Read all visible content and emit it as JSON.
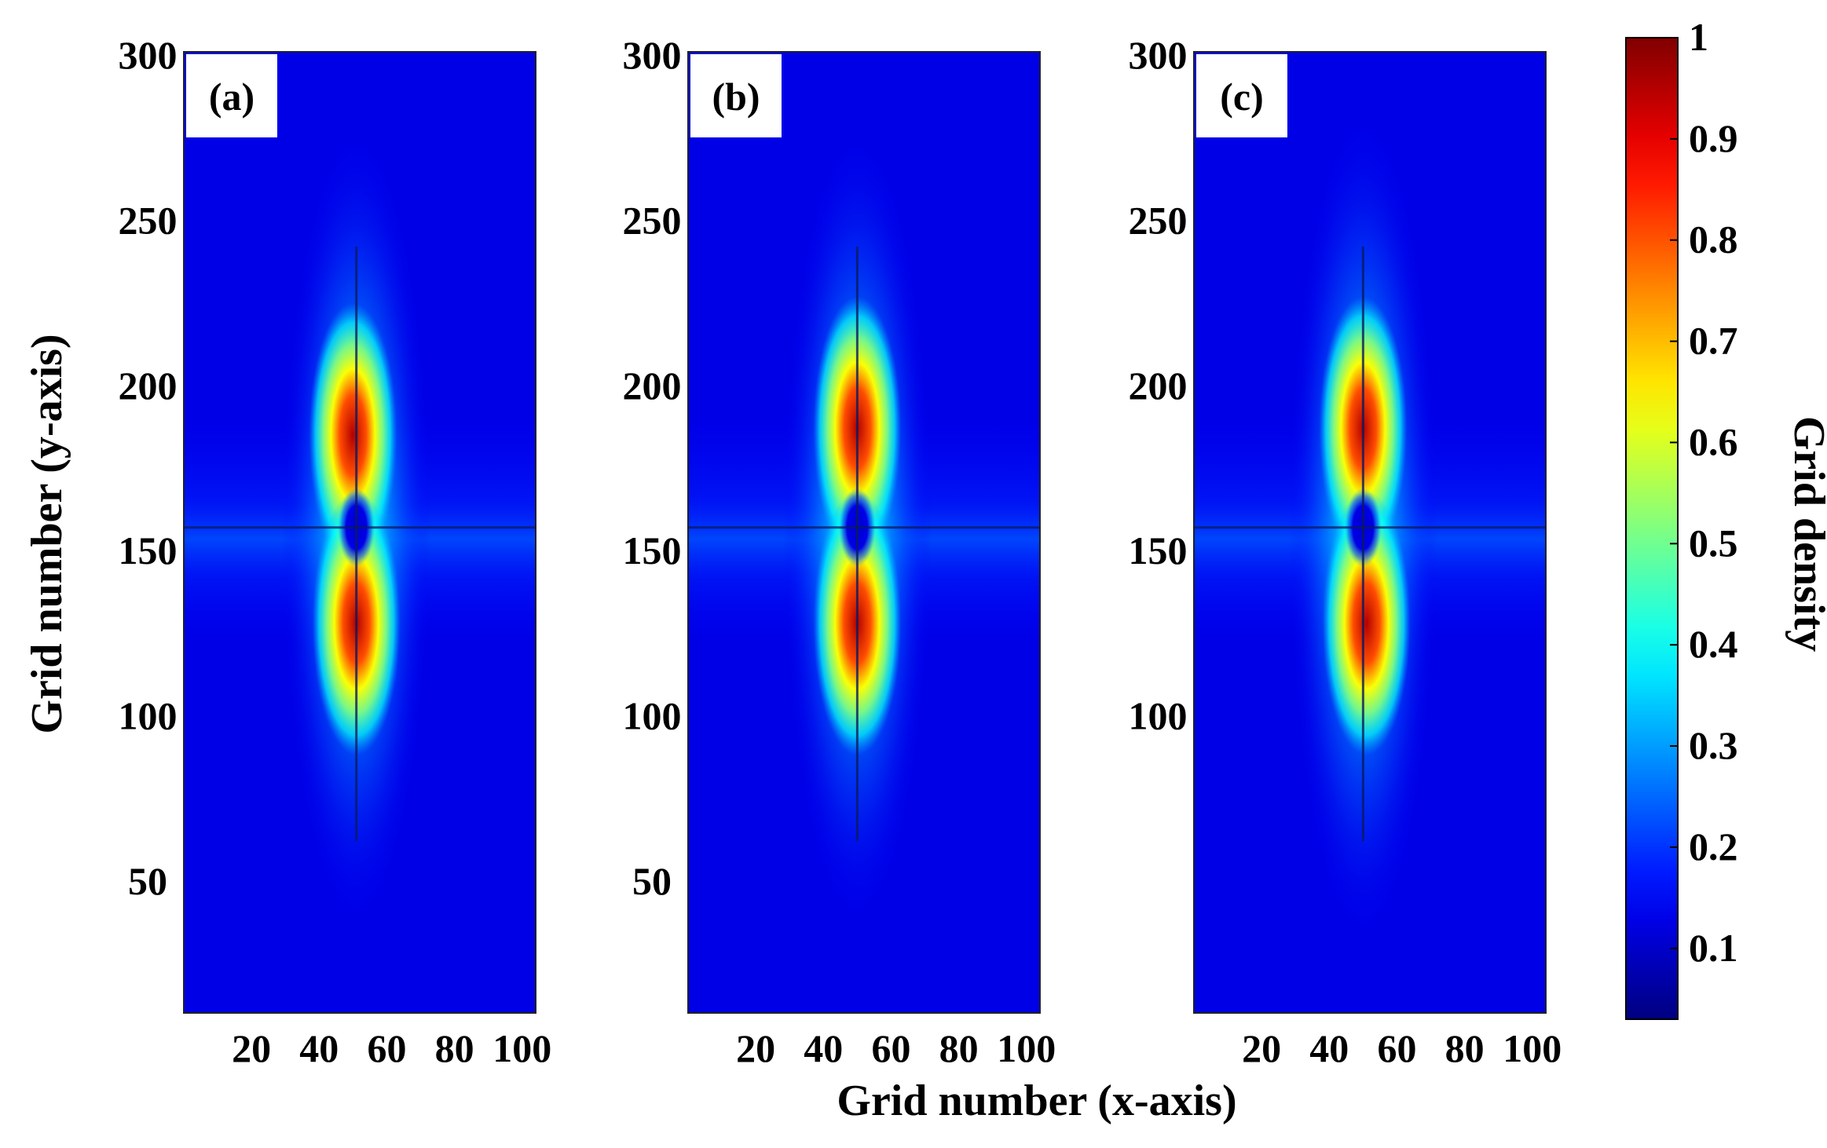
{
  "chart_data": {
    "type": "heatmap",
    "xlabel": "Grid number (x-axis)",
    "ylabel": "Grid number (y-axis)",
    "colorbar": {
      "label": "Grid density",
      "range": [
        0.03,
        1
      ],
      "colormap": "jet",
      "ticks": [
        "0.1",
        "0.2",
        "0.3",
        "0.4",
        "0.5",
        "0.6",
        "0.7",
        "0.8",
        "0.9",
        "1"
      ]
    },
    "panels": [
      {
        "label": "(a)",
        "xlim": [
          0,
          104
        ],
        "ylim": [
          10,
          301
        ],
        "xticks": [
          "20",
          "40",
          "60",
          "80",
          "100"
        ],
        "yticks": [
          "50",
          "100",
          "150",
          "200",
          "250",
          "300"
        ],
        "center": {
          "x": 51,
          "y": 157
        },
        "peaks": [
          {
            "x": 50,
            "y": 185,
            "density": 0.95
          },
          {
            "x": 51,
            "y": 128,
            "density": 0.95
          }
        ],
        "spread_y": 240
      },
      {
        "label": "(b)",
        "xlim": [
          0,
          104
        ],
        "ylim": [
          10,
          301
        ],
        "xticks": [
          "20",
          "40",
          "60",
          "80",
          "100"
        ],
        "yticks": [
          "50",
          "100",
          "150",
          "200",
          "250",
          "300"
        ],
        "center": {
          "x": 50,
          "y": 157
        },
        "peaks": [
          {
            "x": 50,
            "y": 187,
            "density": 0.97
          },
          {
            "x": 50,
            "y": 128,
            "density": 0.9
          }
        ],
        "spread_y": 240
      },
      {
        "label": "(c)",
        "xlim": [
          0,
          104
        ],
        "ylim": [
          10,
          301
        ],
        "xticks": [
          "20",
          "40",
          "60",
          "80",
          "100"
        ],
        "yticks": [
          "100",
          "150",
          "200",
          "250",
          "300"
        ],
        "center": {
          "x": 50,
          "y": 157
        },
        "peaks": [
          {
            "x": 50,
            "y": 187,
            "density": 0.95
          },
          {
            "x": 51,
            "y": 128,
            "density": 0.95
          }
        ],
        "spread_y": 250
      }
    ]
  }
}
